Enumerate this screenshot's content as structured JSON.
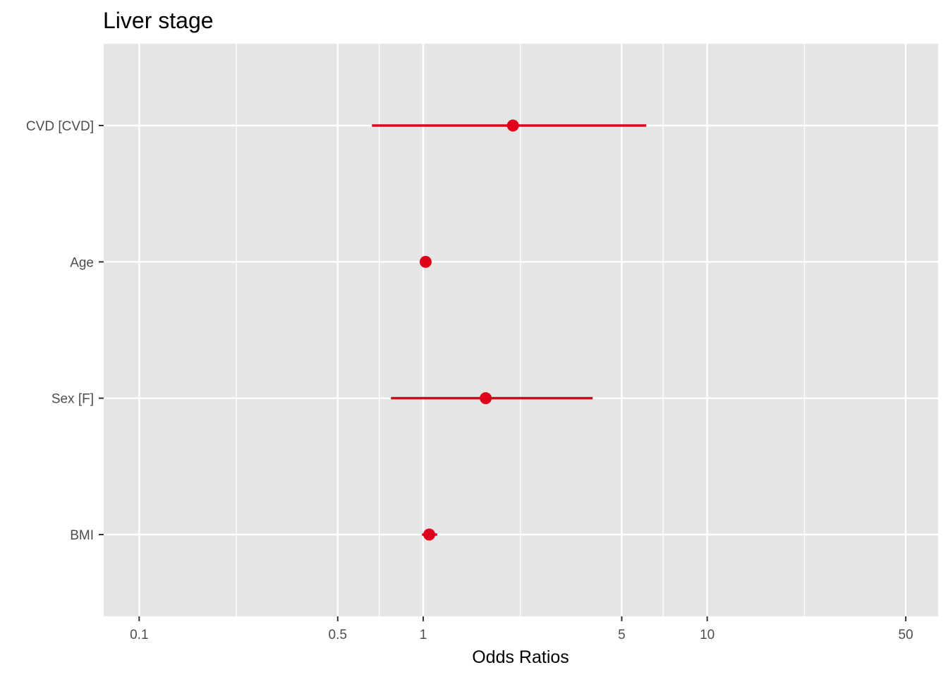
{
  "chart_data": {
    "type": "forest",
    "title": "Liver stage",
    "xlabel": "Odds Ratios",
    "ylabel": "",
    "x_scale": "log10",
    "xlim": [
      0.075,
      65
    ],
    "x_ticks": [
      {
        "value": 0.1,
        "label": "0.1"
      },
      {
        "value": 0.5,
        "label": "0.5"
      },
      {
        "value": 1,
        "label": "1"
      },
      {
        "value": 5,
        "label": "5"
      },
      {
        "value": 10,
        "label": "10"
      },
      {
        "value": 50,
        "label": "50"
      }
    ],
    "x_minor_gridlines": [
      0.22,
      0.7,
      2.2,
      7,
      22
    ],
    "categories": [
      "CVD [CVD]",
      "Age",
      "Sex [F]",
      "BMI"
    ],
    "points": [
      {
        "term": "CVD [CVD]",
        "estimate": 2.07,
        "ci_low": 0.66,
        "ci_high": 6.1
      },
      {
        "term": "Age",
        "estimate": 1.02,
        "ci_low": 1.0,
        "ci_high": 1.04
      },
      {
        "term": "Sex [F]",
        "estimate": 1.66,
        "ci_low": 0.77,
        "ci_high": 3.95
      },
      {
        "term": "BMI",
        "estimate": 1.05,
        "ci_low": 0.99,
        "ci_high": 1.12
      }
    ],
    "grid": true,
    "legend": "none",
    "colors": {
      "point": "#e0001b",
      "panel_background": "#e5e5e5",
      "gridline": "#ffffff",
      "tick_text": "#4d4d4d"
    }
  }
}
